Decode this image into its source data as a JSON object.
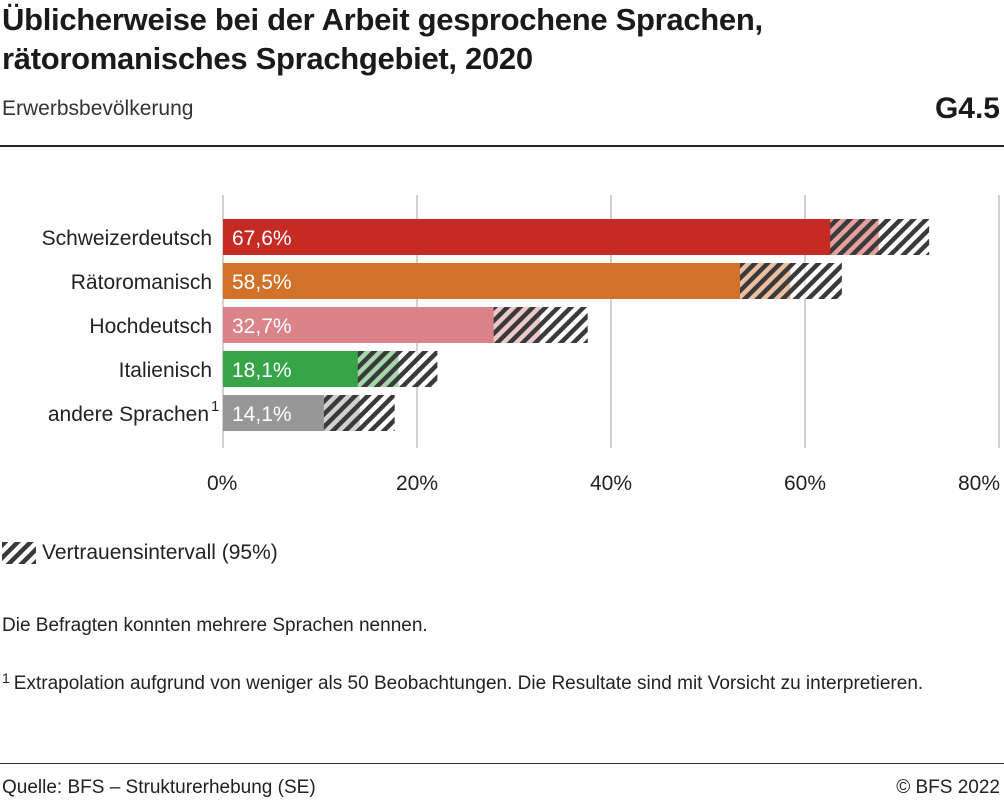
{
  "header": {
    "title": "Üblicherweise bei der Arbeit gesprochene Sprachen, rätoromanisches Sprachgebiet, 2020",
    "subtitle": "Erwerbsbevölkerung",
    "code": "G4.5"
  },
  "legend": {
    "ci_label": "Vertrauensintervall (95%)"
  },
  "note": "Die Befragten konnten mehrere Sprachen nennen.",
  "footnote": {
    "marker": "1",
    "text": "Extrapolation aufgrund von weniger als 50 Beobachtungen. Die Resultate sind mit Vorsicht zu interpretieren."
  },
  "footer": {
    "source": "Quelle: BFS – Strukturerhebung (SE)",
    "copyright": "© BFS 2022"
  },
  "chart_data": {
    "type": "bar",
    "orientation": "horizontal",
    "categories": [
      "Schweizerdeutsch",
      "Rätoromanisch",
      "Hochdeutsch",
      "Italienisch",
      "andere Sprachen"
    ],
    "category_footnotes": [
      "",
      "",
      "",
      "",
      "1"
    ],
    "values": [
      67.6,
      58.5,
      32.7,
      18.1,
      14.1
    ],
    "value_labels": [
      "67,6%",
      "58,5%",
      "32,7%",
      "18,1%",
      "14,1%"
    ],
    "ci_low": [
      62.6,
      53.3,
      27.9,
      13.9,
      10.4
    ],
    "ci_high": [
      72.8,
      63.8,
      37.6,
      22.1,
      17.7
    ],
    "colors": [
      "#c62a25",
      "#d2722a",
      "#da848a",
      "#38a448",
      "#979797"
    ],
    "xlim": [
      0,
      80
    ],
    "xticks": [
      0,
      20,
      40,
      60,
      80
    ],
    "xtick_labels": [
      "0%",
      "20%",
      "40%",
      "60%",
      "80%"
    ],
    "grid": true
  }
}
